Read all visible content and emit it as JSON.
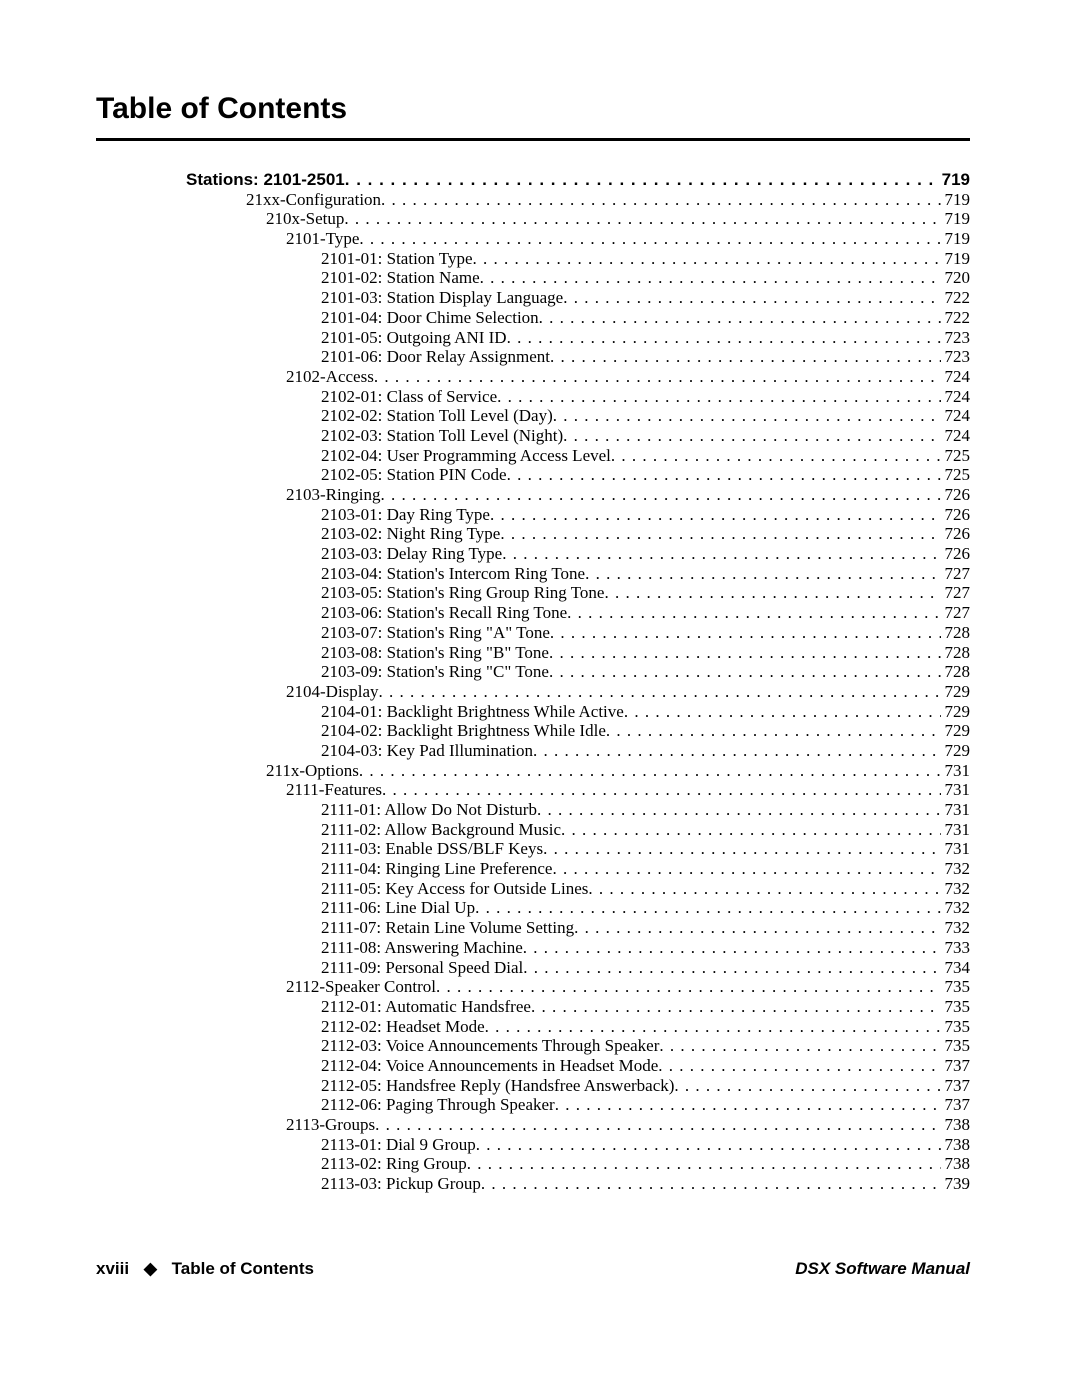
{
  "title": "Table of Contents",
  "footer": {
    "page_roman": "xviii",
    "section": "Table of Contents",
    "manual": "DSX Software Manual"
  },
  "entries": [
    {
      "level": 0,
      "label": "Stations: 2101-2501",
      "page": "719"
    },
    {
      "level": 1,
      "label": "21xx-Configuration",
      "page": "719"
    },
    {
      "level": 2,
      "label": "210x-Setup",
      "page": "719"
    },
    {
      "level": 3,
      "label": "2101-Type",
      "page": "719"
    },
    {
      "level": 4,
      "label": "2101-01: Station Type",
      "page": "719"
    },
    {
      "level": 4,
      "label": "2101-02: Station Name",
      "page": "720"
    },
    {
      "level": 4,
      "label": "2101-03: Station Display Language",
      "page": "722"
    },
    {
      "level": 4,
      "label": "2101-04: Door Chime Selection",
      "page": "722"
    },
    {
      "level": 4,
      "label": "2101-05: Outgoing ANI ID",
      "page": "723"
    },
    {
      "level": 4,
      "label": "2101-06: Door Relay Assignment",
      "page": "723"
    },
    {
      "level": 3,
      "label": "2102-Access",
      "page": "724"
    },
    {
      "level": 4,
      "label": "2102-01: Class of Service",
      "page": "724"
    },
    {
      "level": 4,
      "label": "2102-02: Station Toll Level (Day)",
      "page": "724"
    },
    {
      "level": 4,
      "label": "2102-03: Station Toll Level (Night)",
      "page": "724"
    },
    {
      "level": 4,
      "label": "2102-04: User Programming Access Level",
      "page": "725"
    },
    {
      "level": 4,
      "label": "2102-05: Station PIN Code",
      "page": "725"
    },
    {
      "level": 3,
      "label": "2103-Ringing",
      "page": "726"
    },
    {
      "level": 4,
      "label": "2103-01: Day Ring Type",
      "page": "726"
    },
    {
      "level": 4,
      "label": "2103-02: Night Ring Type",
      "page": "726"
    },
    {
      "level": 4,
      "label": "2103-03: Delay Ring Type",
      "page": "726"
    },
    {
      "level": 4,
      "label": "2103-04: Station's Intercom Ring Tone",
      "page": "727"
    },
    {
      "level": 4,
      "label": "2103-05: Station's Ring Group Ring Tone",
      "page": "727"
    },
    {
      "level": 4,
      "label": "2103-06: Station's Recall Ring Tone",
      "page": "727"
    },
    {
      "level": 4,
      "label": "2103-07: Station's Ring \"A\" Tone",
      "page": "728"
    },
    {
      "level": 4,
      "label": "2103-08: Station's Ring \"B\" Tone",
      "page": "728"
    },
    {
      "level": 4,
      "label": "2103-09: Station's Ring \"C\" Tone",
      "page": "728"
    },
    {
      "level": 3,
      "label": "2104-Display",
      "page": "729"
    },
    {
      "level": 4,
      "label": "2104-01: Backlight Brightness While Active",
      "page": "729"
    },
    {
      "level": 4,
      "label": "2104-02: Backlight Brightness While Idle",
      "page": "729"
    },
    {
      "level": 4,
      "label": "2104-03: Key Pad Illumination",
      "page": "729"
    },
    {
      "level": 2,
      "label": "211x-Options",
      "page": "731"
    },
    {
      "level": 3,
      "label": "2111-Features",
      "page": "731"
    },
    {
      "level": 4,
      "label": "2111-01: Allow Do Not Disturb",
      "page": "731"
    },
    {
      "level": 4,
      "label": "2111-02: Allow Background Music",
      "page": "731"
    },
    {
      "level": 4,
      "label": "2111-03: Enable DSS/BLF Keys",
      "page": "731"
    },
    {
      "level": 4,
      "label": "2111-04: Ringing Line Preference",
      "page": "732"
    },
    {
      "level": 4,
      "label": "2111-05: Key Access for Outside Lines",
      "page": "732"
    },
    {
      "level": 4,
      "label": "2111-06: Line Dial Up",
      "page": "732"
    },
    {
      "level": 4,
      "label": "2111-07: Retain Line Volume Setting",
      "page": "732"
    },
    {
      "level": 4,
      "label": "2111-08: Answering Machine",
      "page": "733"
    },
    {
      "level": 4,
      "label": "2111-09: Personal Speed Dial",
      "page": "734"
    },
    {
      "level": 3,
      "label": "2112-Speaker Control",
      "page": "735"
    },
    {
      "level": 4,
      "label": "2112-01: Automatic Handsfree",
      "page": "735"
    },
    {
      "level": 4,
      "label": "2112-02: Headset Mode",
      "page": "735"
    },
    {
      "level": 4,
      "label": "2112-03: Voice Announcements Through Speaker",
      "page": "735"
    },
    {
      "level": 4,
      "label": "2112-04: Voice Announcements in Headset Mode",
      "page": "737"
    },
    {
      "level": 4,
      "label": "2112-05: Handsfree Reply (Handsfree Answerback)",
      "page": "737"
    },
    {
      "level": 4,
      "label": "2112-06: Paging Through Speaker",
      "page": "737"
    },
    {
      "level": 3,
      "label": "2113-Groups",
      "page": "738"
    },
    {
      "level": 4,
      "label": "2113-01: Dial 9 Group",
      "page": "738"
    },
    {
      "level": 4,
      "label": "2113-02: Ring Group",
      "page": "738"
    },
    {
      "level": 4,
      "label": "2113-03: Pickup Group",
      "page": "739"
    }
  ]
}
